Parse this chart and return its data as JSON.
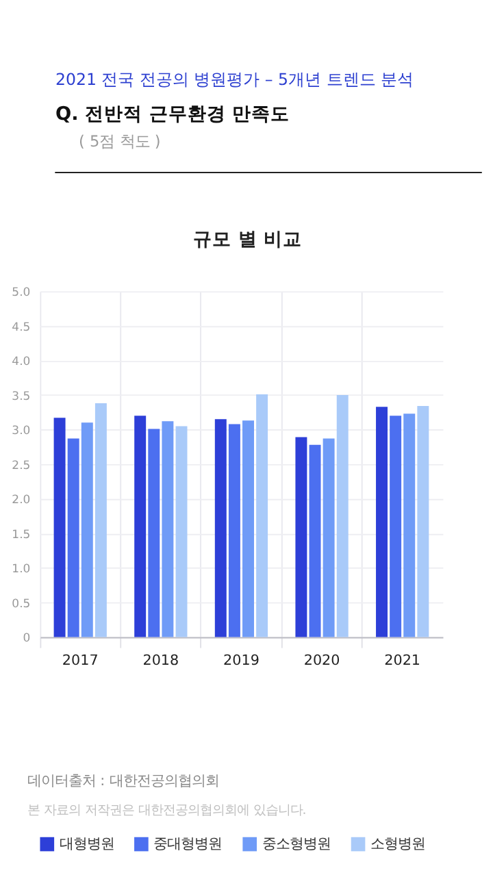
{
  "chart_data": {
    "type": "bar",
    "title": "Q. 전반적 근무환경 만족도",
    "subtitle": "( 5점 척도 )",
    "annotations": [
      "2021 전국 전공의 병원평가 – 5개년 트렌드 분석",
      "규모 별 비교",
      "데이터출처 : 대한전공의협의회",
      "본 자료의 저작권은 대한전공의협의회에 있습니다."
    ],
    "categories": [
      "2017",
      "2018",
      "2019",
      "2020",
      "2021"
    ],
    "series": [
      {
        "name": "대형병원",
        "color": "#2d3fd8",
        "values": [
          3.17,
          3.2,
          3.15,
          2.89,
          3.33
        ]
      },
      {
        "name": "중대형병원",
        "color": "#4c6ff0",
        "values": [
          2.87,
          3.01,
          3.08,
          2.78,
          3.2
        ]
      },
      {
        "name": "중소형병원",
        "color": "#6f9bf7",
        "values": [
          3.1,
          3.12,
          3.13,
          2.87,
          3.23
        ]
      },
      {
        "name": "소형병원",
        "color": "#a9caf9",
        "values": [
          3.38,
          3.05,
          3.51,
          3.5,
          3.34
        ]
      }
    ],
    "ylim": [
      0,
      5
    ],
    "yticks": [
      0,
      0.5,
      {
        "value": 1,
        "label": "1.0"
      },
      1.5,
      {
        "value": 2,
        "label": "2.0"
      },
      2.5,
      {
        "value": 3,
        "label": "3.0"
      },
      3.5,
      {
        "value": 4,
        "label": "4.0"
      },
      4.5,
      {
        "value": 5,
        "label": "5.0"
      }
    ],
    "grid": true,
    "legend": "bottom"
  }
}
